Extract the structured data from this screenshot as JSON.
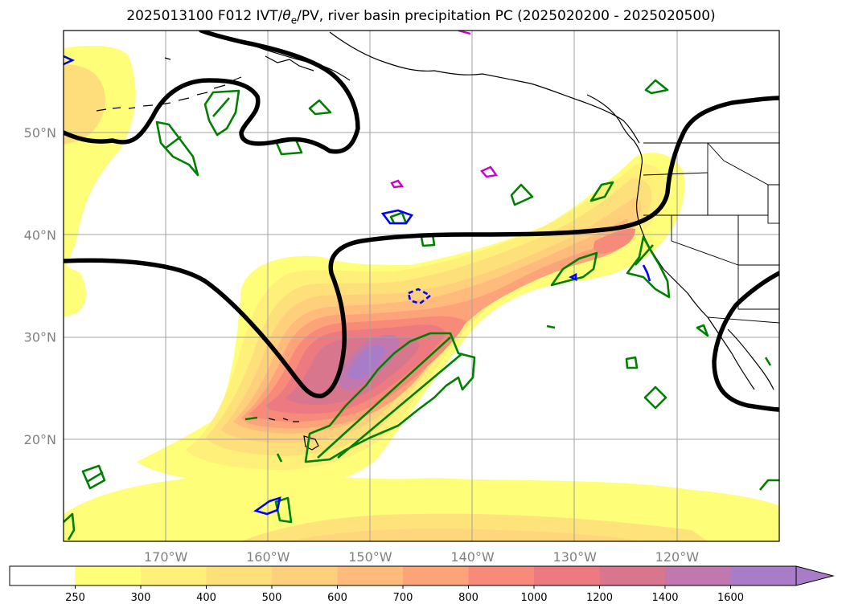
{
  "title": {
    "prefix": "2025013100 F012 IVT/",
    "theta_symbol": "θ",
    "theta_sub": "e",
    "suffix": "/PV, river basin precipitation PC (2025020200 - 2025020500)"
  },
  "map": {
    "lon_range": [
      -180,
      -110
    ],
    "lat_range": [
      10,
      60
    ],
    "lon_ticks": [
      {
        "value": -170,
        "label": "170°W"
      },
      {
        "value": -160,
        "label": "160°W"
      },
      {
        "value": -150,
        "label": "150°W"
      },
      {
        "value": -140,
        "label": "140°W"
      },
      {
        "value": -130,
        "label": "130°W"
      },
      {
        "value": -120,
        "label": "120°W"
      }
    ],
    "lat_ticks": [
      {
        "value": 20,
        "label": "20°N"
      },
      {
        "value": 30,
        "label": "30°N"
      },
      {
        "value": 40,
        "label": "40°N"
      },
      {
        "value": 50,
        "label": "50°N"
      }
    ],
    "grid": true
  },
  "colorbar": {
    "levels": [
      {
        "label": "250",
        "color": "#fefe78"
      },
      {
        "label": "300",
        "color": "#fef078"
      },
      {
        "label": "400",
        "color": "#fee07a"
      },
      {
        "label": "500",
        "color": "#fed07c"
      },
      {
        "label": "600",
        "color": "#febb7c"
      },
      {
        "label": "700",
        "color": "#fca37a"
      },
      {
        "label": "800",
        "color": "#f88a7a"
      },
      {
        "label": "1000",
        "color": "#ec7a80"
      },
      {
        "label": "1200",
        "color": "#d8768e"
      },
      {
        "label": "1400",
        "color": "#c078ae"
      },
      {
        "label": "1600",
        "color": "#a87cc8"
      }
    ],
    "first_color": "#ffffff",
    "extend": "max"
  },
  "colors": {
    "ivt_low": "#fefe78",
    "ivt_mid": "#fed07c",
    "ivt_high": "#f88a7a",
    "ivt_max": "#a87cc8",
    "pv_contour": "#000000",
    "theta_e_contour": "#008000",
    "negative_contour": "#0000ff",
    "magenta_contour": "#cc00cc",
    "grid": "#a0a0a0"
  }
}
